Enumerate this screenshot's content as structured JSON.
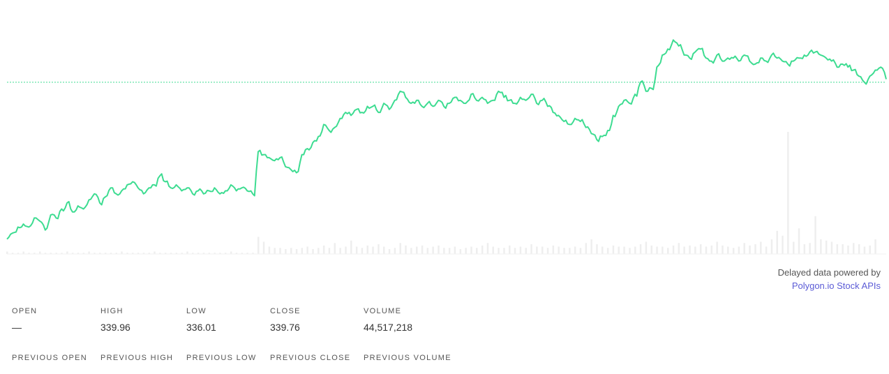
{
  "chart_data": {
    "type": "line",
    "title": "",
    "xlabel": "",
    "ylabel": "",
    "previous_close_reference": true,
    "grid": false,
    "legend": "none",
    "line_color": "#3ddc91",
    "volume_color": "#eeeeee",
    "price_samples": [
      336.1,
      336.3,
      336.5,
      336.6,
      336.5,
      336.8,
      336.7,
      336.4,
      336.9,
      336.8,
      337.1,
      337.3,
      337.0,
      337.2,
      337.1,
      337.4,
      337.6,
      337.3,
      337.5,
      337.8,
      337.6,
      337.7,
      337.9,
      338.0,
      337.8,
      337.6,
      337.8,
      337.9,
      338.2,
      338.0,
      337.8,
      337.9,
      337.7,
      337.8,
      337.6,
      337.7,
      337.6,
      337.7,
      337.8,
      337.6,
      337.7,
      337.9,
      337.7,
      337.8,
      337.7,
      337.6,
      339.0,
      338.9,
      338.8,
      338.7,
      338.8,
      338.5,
      338.4,
      338.3,
      338.9,
      339.1,
      339.3,
      339.5,
      339.9,
      339.7,
      339.8,
      340.1,
      340.3,
      340.2,
      340.4,
      340.3,
      340.5,
      340.5,
      340.3,
      340.6,
      340.4,
      340.7,
      341.0,
      340.8,
      340.6,
      340.7,
      340.5,
      340.6,
      340.5,
      340.7,
      340.5,
      340.6,
      340.8,
      340.7,
      340.6,
      340.9,
      340.7,
      340.8,
      340.6,
      340.7,
      341.0,
      340.8,
      340.7,
      340.6,
      340.8,
      340.7,
      340.9,
      340.6,
      340.7,
      340.5,
      340.3,
      340.2,
      340.0,
      339.9,
      340.1,
      340.0,
      339.8,
      339.6,
      339.4,
      339.5,
      339.7,
      340.2,
      340.5,
      340.7,
      340.6,
      340.9,
      341.3,
      341.0,
      341.1,
      341.8,
      342.2,
      342.4,
      342.7,
      342.5,
      342.2,
      342.1,
      342.3,
      342.4,
      342.1,
      342.0,
      342.2,
      342.0,
      342.1,
      342.1,
      342.0,
      342.2,
      342.0,
      341.9,
      342.1,
      342.0,
      342.2,
      342.1,
      342.0,
      341.9,
      342.0,
      342.1,
      342.2,
      342.3,
      342.3,
      342.2,
      342.1,
      342.0,
      341.8,
      341.9,
      341.8,
      341.7,
      341.5,
      341.3,
      341.5,
      341.7,
      341.8,
      341.4
    ],
    "previous_close": 341.3,
    "ylim": [
      335.7,
      343.1
    ],
    "volume_samples": [
      2,
      1,
      1,
      2,
      1,
      1,
      2,
      1,
      1,
      1,
      1,
      2,
      1,
      1,
      1,
      2,
      1,
      1,
      1,
      1,
      1,
      2,
      1,
      1,
      1,
      1,
      1,
      2,
      1,
      1,
      1,
      1,
      1,
      2,
      1,
      1,
      1,
      1,
      1,
      1,
      1,
      2,
      1,
      1,
      1,
      1,
      14,
      10,
      6,
      5,
      5,
      4,
      5,
      4,
      5,
      6,
      4,
      5,
      7,
      5,
      9,
      5,
      6,
      11,
      6,
      5,
      7,
      6,
      8,
      6,
      4,
      5,
      9,
      7,
      5,
      6,
      7,
      5,
      6,
      7,
      5,
      5,
      6,
      4,
      5,
      6,
      5,
      7,
      9,
      6,
      5,
      5,
      7,
      5,
      6,
      5,
      8,
      6,
      6,
      5,
      7,
      6,
      5,
      5,
      6,
      5,
      9,
      12,
      8,
      6,
      5,
      7,
      6,
      6,
      5,
      6,
      8,
      10,
      7,
      6,
      6,
      5,
      7,
      9,
      6,
      7,
      6,
      8,
      6,
      7,
      10,
      7,
      6,
      5,
      6,
      9,
      7,
      8,
      10,
      6,
      12,
      19,
      15,
      100,
      10,
      21,
      8,
      9,
      31,
      12,
      11,
      10,
      8,
      8,
      7,
      9,
      8,
      6,
      7,
      12
    ]
  },
  "attribution": {
    "line1": "Delayed data powered by",
    "link": "Polygon.io Stock APIs"
  },
  "stats": {
    "open_label": "OPEN",
    "open_value": "—",
    "high_label": "HIGH",
    "high_value": "339.96",
    "low_label": "LOW",
    "low_value": "336.01",
    "close_label": "CLOSE",
    "close_value": "339.76",
    "volume_label": "VOLUME",
    "volume_value": "44,517,218",
    "prev_open_label": "PREVIOUS OPEN",
    "prev_high_label": "PREVIOUS HIGH",
    "prev_low_label": "PREVIOUS LOW",
    "prev_close_label": "PREVIOUS CLOSE",
    "prev_volume_label": "PREVIOUS VOLUME"
  }
}
